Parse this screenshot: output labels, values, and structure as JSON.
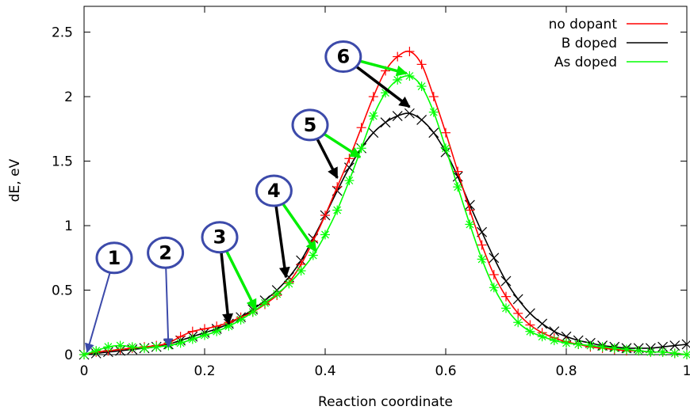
{
  "chart_data": {
    "type": "line",
    "xlabel": "Reaction coordinate",
    "ylabel": "dE, eV",
    "xlim": [
      0,
      1
    ],
    "ylim": [
      0,
      2.7
    ],
    "xticks": [
      {
        "value": 0,
        "label": "0"
      },
      {
        "value": 0.2,
        "label": "0.2"
      },
      {
        "value": 0.4,
        "label": "0.4"
      },
      {
        "value": 0.6,
        "label": "0.6"
      },
      {
        "value": 0.8,
        "label": "0.8"
      },
      {
        "value": 1,
        "label": "1"
      }
    ],
    "yticks": [
      {
        "value": 0,
        "label": "0"
      },
      {
        "value": 0.5,
        "label": "0.5"
      },
      {
        "value": 1,
        "label": "1"
      },
      {
        "value": 1.5,
        "label": "1.5"
      },
      {
        "value": 2,
        "label": "2"
      },
      {
        "value": 2.5,
        "label": "2.5"
      }
    ],
    "legend_position": "top-right",
    "grid": false,
    "series": [
      {
        "name": "no dopant",
        "color": "#ff0000",
        "marker": "plus",
        "points": [
          [
            0,
            0
          ],
          [
            0.02,
            0.02
          ],
          [
            0.04,
            0.03
          ],
          [
            0.06,
            0.04
          ],
          [
            0.08,
            0.05
          ],
          [
            0.1,
            0.06
          ],
          [
            0.12,
            0.07
          ],
          [
            0.14,
            0.09
          ],
          [
            0.16,
            0.14
          ],
          [
            0.18,
            0.18
          ],
          [
            0.2,
            0.2
          ],
          [
            0.22,
            0.22
          ],
          [
            0.24,
            0.25
          ],
          [
            0.26,
            0.29
          ],
          [
            0.28,
            0.33
          ],
          [
            0.3,
            0.39
          ],
          [
            0.32,
            0.46
          ],
          [
            0.34,
            0.56
          ],
          [
            0.36,
            0.7
          ],
          [
            0.38,
            0.88
          ],
          [
            0.4,
            1.08
          ],
          [
            0.42,
            1.3
          ],
          [
            0.44,
            1.52
          ],
          [
            0.46,
            1.76
          ],
          [
            0.48,
            2.0
          ],
          [
            0.5,
            2.2
          ],
          [
            0.52,
            2.31
          ],
          [
            0.54,
            2.35
          ],
          [
            0.56,
            2.25
          ],
          [
            0.58,
            2.0
          ],
          [
            0.6,
            1.72
          ],
          [
            0.62,
            1.42
          ],
          [
            0.64,
            1.12
          ],
          [
            0.66,
            0.85
          ],
          [
            0.68,
            0.62
          ],
          [
            0.7,
            0.45
          ],
          [
            0.72,
            0.32
          ],
          [
            0.74,
            0.23
          ],
          [
            0.76,
            0.17
          ],
          [
            0.78,
            0.13
          ],
          [
            0.8,
            0.1
          ],
          [
            0.82,
            0.08
          ],
          [
            0.84,
            0.06
          ],
          [
            0.86,
            0.05
          ],
          [
            0.88,
            0.04
          ],
          [
            0.9,
            0.03
          ],
          [
            0.92,
            0.03
          ],
          [
            0.94,
            0.02
          ],
          [
            0.96,
            0.02
          ],
          [
            0.98,
            0.01
          ],
          [
            1.0,
            0.0
          ]
        ]
      },
      {
        "name": "B doped",
        "color": "#000000",
        "marker": "cross",
        "points": [
          [
            0,
            0
          ],
          [
            0.02,
            0.01
          ],
          [
            0.04,
            0.02
          ],
          [
            0.06,
            0.03
          ],
          [
            0.08,
            0.04
          ],
          [
            0.1,
            0.05
          ],
          [
            0.12,
            0.06
          ],
          [
            0.14,
            0.08
          ],
          [
            0.16,
            0.11
          ],
          [
            0.18,
            0.14
          ],
          [
            0.2,
            0.17
          ],
          [
            0.22,
            0.2
          ],
          [
            0.24,
            0.24
          ],
          [
            0.26,
            0.29
          ],
          [
            0.28,
            0.35
          ],
          [
            0.3,
            0.42
          ],
          [
            0.32,
            0.5
          ],
          [
            0.34,
            0.6
          ],
          [
            0.36,
            0.73
          ],
          [
            0.38,
            0.9
          ],
          [
            0.4,
            1.08
          ],
          [
            0.42,
            1.27
          ],
          [
            0.44,
            1.45
          ],
          [
            0.46,
            1.6
          ],
          [
            0.48,
            1.72
          ],
          [
            0.5,
            1.8
          ],
          [
            0.52,
            1.85
          ],
          [
            0.54,
            1.87
          ],
          [
            0.56,
            1.82
          ],
          [
            0.58,
            1.72
          ],
          [
            0.6,
            1.57
          ],
          [
            0.62,
            1.38
          ],
          [
            0.64,
            1.16
          ],
          [
            0.66,
            0.95
          ],
          [
            0.68,
            0.75
          ],
          [
            0.7,
            0.57
          ],
          [
            0.72,
            0.43
          ],
          [
            0.74,
            0.32
          ],
          [
            0.76,
            0.24
          ],
          [
            0.78,
            0.18
          ],
          [
            0.8,
            0.14
          ],
          [
            0.82,
            0.11
          ],
          [
            0.84,
            0.09
          ],
          [
            0.86,
            0.07
          ],
          [
            0.88,
            0.06
          ],
          [
            0.9,
            0.05
          ],
          [
            0.92,
            0.05
          ],
          [
            0.94,
            0.05
          ],
          [
            0.96,
            0.06
          ],
          [
            0.98,
            0.07
          ],
          [
            1.0,
            0.08
          ]
        ]
      },
      {
        "name": "As doped",
        "color": "#00ff00",
        "marker": "star",
        "points": [
          [
            0,
            0
          ],
          [
            0.02,
            0.03
          ],
          [
            0.04,
            0.06
          ],
          [
            0.06,
            0.07
          ],
          [
            0.08,
            0.06
          ],
          [
            0.1,
            0.05
          ],
          [
            0.12,
            0.06
          ],
          [
            0.14,
            0.07
          ],
          [
            0.16,
            0.09
          ],
          [
            0.18,
            0.12
          ],
          [
            0.2,
            0.15
          ],
          [
            0.22,
            0.18
          ],
          [
            0.24,
            0.22
          ],
          [
            0.26,
            0.27
          ],
          [
            0.28,
            0.33
          ],
          [
            0.3,
            0.4
          ],
          [
            0.32,
            0.47
          ],
          [
            0.34,
            0.55
          ],
          [
            0.36,
            0.65
          ],
          [
            0.38,
            0.77
          ],
          [
            0.4,
            0.93
          ],
          [
            0.42,
            1.12
          ],
          [
            0.44,
            1.35
          ],
          [
            0.46,
            1.6
          ],
          [
            0.48,
            1.85
          ],
          [
            0.5,
            2.03
          ],
          [
            0.52,
            2.13
          ],
          [
            0.54,
            2.16
          ],
          [
            0.56,
            2.08
          ],
          [
            0.58,
            1.88
          ],
          [
            0.6,
            1.6
          ],
          [
            0.62,
            1.3
          ],
          [
            0.64,
            1.01
          ],
          [
            0.66,
            0.74
          ],
          [
            0.68,
            0.52
          ],
          [
            0.7,
            0.36
          ],
          [
            0.72,
            0.25
          ],
          [
            0.74,
            0.18
          ],
          [
            0.76,
            0.14
          ],
          [
            0.78,
            0.11
          ],
          [
            0.8,
            0.09
          ],
          [
            0.82,
            0.08
          ],
          [
            0.84,
            0.07
          ],
          [
            0.86,
            0.06
          ],
          [
            0.88,
            0.05
          ],
          [
            0.9,
            0.04
          ],
          [
            0.92,
            0.03
          ],
          [
            0.94,
            0.02
          ],
          [
            0.96,
            0.02
          ],
          [
            0.98,
            0.01
          ],
          [
            1.0,
            0.0
          ]
        ]
      }
    ],
    "annotations": [
      {
        "label": "1",
        "at": [
          0.05,
          0.75
        ],
        "arrows": [
          {
            "to": [
              0.005,
              0.02
            ],
            "color": "#3c4aaa"
          }
        ]
      },
      {
        "label": "2",
        "at": [
          0.135,
          0.79
        ],
        "arrows": [
          {
            "to": [
              0.14,
              0.06
            ],
            "color": "#3c4aaa"
          }
        ]
      },
      {
        "label": "3",
        "at": [
          0.225,
          0.91
        ],
        "arrows": [
          {
            "to": [
              0.24,
              0.24
            ],
            "color": "#000000"
          },
          {
            "to": [
              0.285,
              0.35
            ],
            "color": "#00ee00"
          }
        ]
      },
      {
        "label": "4",
        "at": [
          0.315,
          1.27
        ],
        "arrows": [
          {
            "to": [
              0.335,
              0.6
            ],
            "color": "#000000"
          },
          {
            "to": [
              0.385,
              0.8
            ],
            "color": "#00ee00"
          }
        ]
      },
      {
        "label": "5",
        "at": [
          0.375,
          1.78
        ],
        "arrows": [
          {
            "to": [
              0.42,
              1.37
            ],
            "color": "#000000"
          },
          {
            "to": [
              0.458,
              1.53
            ],
            "color": "#00ee00"
          }
        ]
      },
      {
        "label": "6",
        "at": [
          0.43,
          2.31
        ],
        "arrows": [
          {
            "to": [
              0.54,
              1.92
            ],
            "color": "#000000"
          },
          {
            "to": [
              0.535,
              2.18
            ],
            "color": "#00ee00"
          }
        ]
      }
    ]
  }
}
